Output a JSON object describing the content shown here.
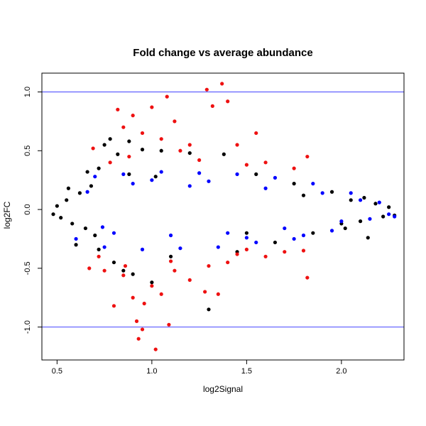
{
  "chart_data": {
    "type": "scatter",
    "title": "Fold change vs average abundance",
    "xlabel": "log2Signal",
    "ylabel": "log2FC",
    "xlim": [
      0.42,
      2.33
    ],
    "ylim": [
      -1.28,
      1.16
    ],
    "x_ticks": [
      0.5,
      1.0,
      1.5,
      2.0
    ],
    "x_tick_labels": [
      "0.5",
      "1.0",
      "1.5",
      "2.0"
    ],
    "y_ticks": [
      -1.0,
      -0.5,
      0.0,
      0.5,
      1.0
    ],
    "y_tick_labels": [
      "-1.0",
      "-0.5",
      "0.0",
      "0.5",
      "1.0"
    ],
    "reference_lines": [
      {
        "axis": "y",
        "value": 1.0,
        "color": "#4444ff"
      },
      {
        "axis": "y",
        "value": -1.0,
        "color": "#4444ff"
      }
    ],
    "grid": false,
    "legend": "none",
    "series": [
      {
        "color": "#000000",
        "points": [
          [
            0.48,
            -0.04
          ],
          [
            0.5,
            0.03
          ],
          [
            0.52,
            -0.07
          ],
          [
            0.55,
            0.08
          ],
          [
            0.58,
            -0.12
          ],
          [
            0.62,
            0.14
          ],
          [
            0.65,
            -0.16
          ],
          [
            0.68,
            0.2
          ],
          [
            0.7,
            -0.22
          ],
          [
            0.72,
            0.35
          ],
          [
            0.75,
            0.55
          ],
          [
            0.78,
            0.6
          ],
          [
            0.8,
            -0.45
          ],
          [
            0.82,
            0.47
          ],
          [
            0.85,
            -0.52
          ],
          [
            0.88,
            0.58
          ],
          [
            0.9,
            -0.55
          ],
          [
            0.95,
            0.51
          ],
          [
            1.0,
            -0.62
          ],
          [
            1.05,
            0.5
          ],
          [
            1.1,
            -0.4
          ],
          [
            1.2,
            0.48
          ],
          [
            1.3,
            -0.85
          ],
          [
            1.38,
            0.47
          ],
          [
            1.45,
            -0.36
          ],
          [
            1.55,
            0.3
          ],
          [
            1.65,
            -0.28
          ],
          [
            1.75,
            0.22
          ],
          [
            1.85,
            -0.2
          ],
          [
            1.95,
            0.15
          ],
          [
            2.0,
            -0.12
          ],
          [
            2.05,
            0.08
          ],
          [
            2.1,
            -0.1
          ],
          [
            2.12,
            0.1
          ],
          [
            2.14,
            -0.24
          ],
          [
            2.18,
            0.05
          ],
          [
            2.22,
            -0.06
          ],
          [
            2.25,
            0.02
          ],
          [
            2.28,
            -0.05
          ],
          [
            0.88,
            0.3
          ],
          [
            0.6,
            -0.3
          ],
          [
            0.66,
            0.32
          ],
          [
            1.02,
            0.28
          ],
          [
            1.5,
            -0.2
          ],
          [
            1.8,
            0.12
          ],
          [
            0.56,
            0.18
          ],
          [
            0.72,
            -0.34
          ],
          [
            2.02,
            -0.16
          ]
        ]
      },
      {
        "color": "#0000ff",
        "points": [
          [
            0.6,
            -0.25
          ],
          [
            0.7,
            0.28
          ],
          [
            0.75,
            -0.32
          ],
          [
            0.85,
            0.3
          ],
          [
            0.95,
            -0.34
          ],
          [
            1.05,
            0.32
          ],
          [
            1.15,
            -0.33
          ],
          [
            1.25,
            0.31
          ],
          [
            1.35,
            -0.32
          ],
          [
            1.45,
            0.3
          ],
          [
            1.55,
            -0.28
          ],
          [
            1.65,
            0.27
          ],
          [
            1.75,
            -0.25
          ],
          [
            1.85,
            0.22
          ],
          [
            1.95,
            -0.18
          ],
          [
            2.05,
            0.14
          ],
          [
            2.15,
            -0.08
          ],
          [
            2.2,
            0.06
          ],
          [
            2.25,
            -0.04
          ],
          [
            2.28,
            -0.06
          ],
          [
            0.8,
            -0.2
          ],
          [
            0.9,
            0.22
          ],
          [
            1.0,
            0.25
          ],
          [
            1.1,
            -0.22
          ],
          [
            1.3,
            0.24
          ],
          [
            1.4,
            -0.2
          ],
          [
            1.6,
            0.18
          ],
          [
            1.7,
            -0.16
          ],
          [
            1.9,
            0.14
          ],
          [
            2.0,
            -0.1
          ],
          [
            1.2,
            0.2
          ],
          [
            1.5,
            -0.24
          ],
          [
            0.66,
            0.15
          ],
          [
            0.74,
            -0.15
          ],
          [
            1.8,
            -0.22
          ],
          [
            2.1,
            0.08
          ]
        ]
      },
      {
        "color": "#ee1111",
        "points": [
          [
            0.69,
            0.52
          ],
          [
            0.82,
            0.85
          ],
          [
            0.85,
            0.7
          ],
          [
            0.9,
            0.8
          ],
          [
            0.95,
            0.65
          ],
          [
            1.0,
            0.87
          ],
          [
            1.05,
            0.6
          ],
          [
            1.08,
            0.96
          ],
          [
            1.12,
            0.75
          ],
          [
            1.2,
            0.55
          ],
          [
            1.29,
            1.02
          ],
          [
            1.32,
            0.88
          ],
          [
            1.37,
            1.07
          ],
          [
            1.4,
            0.92
          ],
          [
            1.45,
            0.55
          ],
          [
            1.55,
            0.65
          ],
          [
            1.6,
            0.4
          ],
          [
            1.75,
            0.35
          ],
          [
            1.82,
            0.45
          ],
          [
            0.78,
            0.4
          ],
          [
            0.88,
            0.45
          ],
          [
            1.15,
            0.5
          ],
          [
            1.25,
            0.42
          ],
          [
            1.5,
            0.38
          ],
          [
            0.67,
            -0.5
          ],
          [
            0.75,
            -0.52
          ],
          [
            0.8,
            -0.82
          ],
          [
            0.85,
            -0.56
          ],
          [
            0.9,
            -0.75
          ],
          [
            0.92,
            -0.95
          ],
          [
            0.95,
            -1.02
          ],
          [
            0.96,
            -0.8
          ],
          [
            1.0,
            -0.65
          ],
          [
            1.02,
            -1.19
          ],
          [
            1.05,
            -0.72
          ],
          [
            1.09,
            -0.98
          ],
          [
            1.12,
            -0.52
          ],
          [
            1.2,
            -0.6
          ],
          [
            1.28,
            -0.7
          ],
          [
            1.35,
            -0.72
          ],
          [
            1.4,
            -0.45
          ],
          [
            1.45,
            -0.38
          ],
          [
            1.5,
            -0.34
          ],
          [
            1.6,
            -0.4
          ],
          [
            1.7,
            -0.36
          ],
          [
            1.8,
            -0.35
          ],
          [
            1.82,
            -0.58
          ],
          [
            0.93,
            -1.1
          ],
          [
            0.86,
            -0.48
          ],
          [
            1.1,
            -0.44
          ],
          [
            1.3,
            -0.48
          ],
          [
            0.72,
            -0.4
          ]
        ]
      }
    ]
  }
}
